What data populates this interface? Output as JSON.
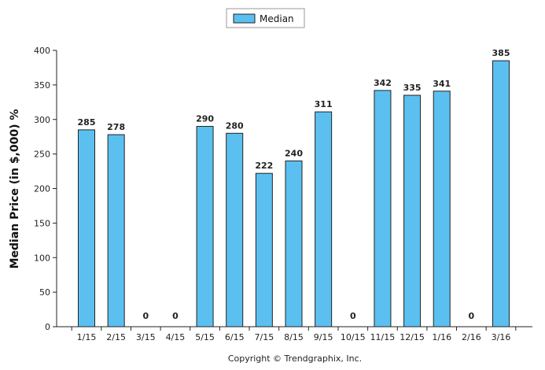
{
  "chart_data": {
    "type": "bar",
    "categories": [
      "1/15",
      "2/15",
      "3/15",
      "4/15",
      "5/15",
      "6/15",
      "7/15",
      "8/15",
      "9/15",
      "10/15",
      "11/15",
      "12/15",
      "1/16",
      "2/16",
      "3/16"
    ],
    "series": [
      {
        "name": "Median",
        "values": [
          285,
          278,
          0,
          0,
          290,
          280,
          222,
          240,
          311,
          0,
          342,
          335,
          341,
          0,
          385
        ],
        "color": "#5bc0f0"
      }
    ],
    "data_labels": [
      "285",
      "278",
      "0",
      "0",
      "290",
      "280",
      "222",
      "240",
      "311",
      "0",
      "342",
      "335",
      "341",
      "0",
      "385"
    ],
    "ylabel": "Median Price (in $,000) %",
    "ylim": [
      0,
      400
    ],
    "yticks": [
      0,
      50,
      100,
      150,
      200,
      250,
      300,
      350,
      400
    ],
    "grid": false,
    "legend_position": "top-center",
    "bar_edge_color": "#222222"
  },
  "legend": {
    "label": "Median"
  },
  "footer": {
    "copyright": "Copyright © Trendgraphix, Inc."
  }
}
